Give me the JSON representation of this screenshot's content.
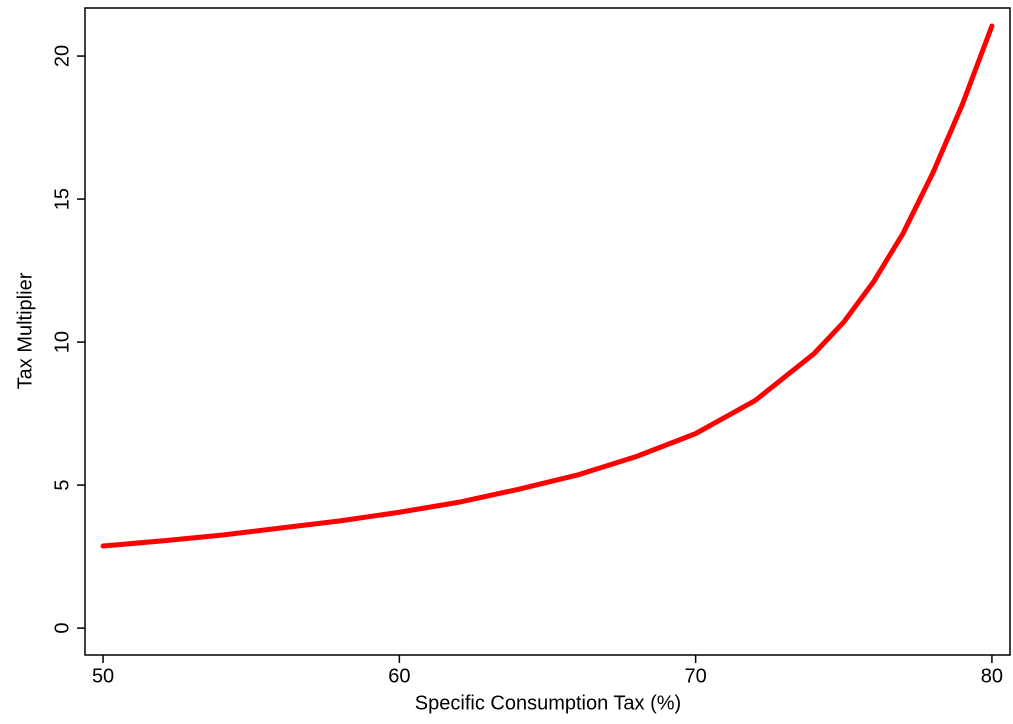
{
  "chart_data": {
    "type": "line",
    "x_label": "Specific Consumption Tax (%)",
    "y_label": "Tax Multiplier",
    "x": [
      50,
      52,
      54,
      56,
      58,
      60,
      62,
      64,
      66,
      68,
      70,
      72,
      74,
      75,
      76,
      77,
      78,
      79,
      80
    ],
    "series": [
      {
        "color": "#ff0000",
        "values": [
          2.87,
          3.05,
          3.25,
          3.5,
          3.75,
          4.05,
          4.4,
          4.85,
          5.35,
          6.0,
          6.8,
          7.95,
          9.6,
          10.7,
          12.1,
          13.8,
          15.9,
          18.3,
          21.05
        ]
      }
    ],
    "xlim": [
      49.39,
      80.61
    ],
    "ylim": [
      -0.94,
      21.68
    ],
    "xticks": [
      50,
      60,
      70,
      80
    ],
    "yticks": [
      0,
      5,
      10,
      15,
      20
    ]
  }
}
